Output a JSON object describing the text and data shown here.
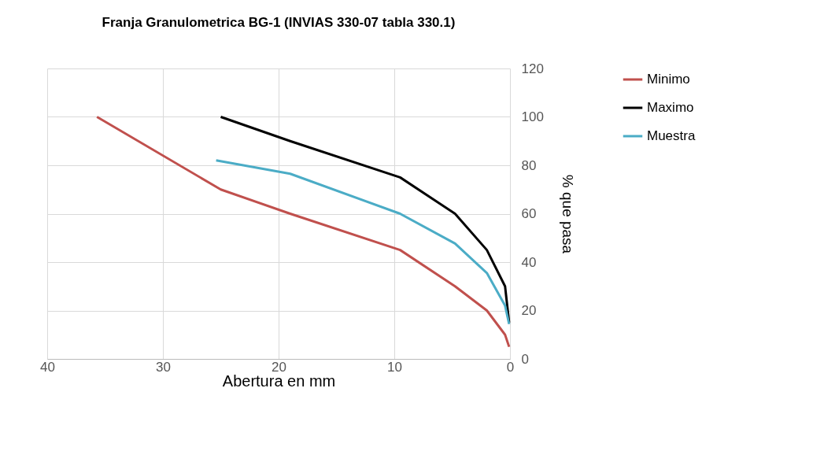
{
  "chart_data": {
    "type": "line",
    "title": "Franja Granulometrica BG-1 (INVIAS 330-07 tabla 330.1)",
    "xlabel": "Abertura en mm",
    "ylabel": "% que pasa",
    "series": [
      {
        "name": "Minimo",
        "color": "#c0504d",
        "x": [
          35.7,
          25,
          19,
          9.5,
          4.75,
          2,
          0.425,
          0.075
        ],
        "values": [
          100,
          70,
          60,
          45,
          30,
          20,
          10,
          5
        ]
      },
      {
        "name": "Maximo",
        "color": "#000000",
        "x": [
          25,
          19,
          9.5,
          4.75,
          2,
          0.425,
          0.075
        ],
        "values": [
          100,
          90,
          75,
          60,
          45,
          30,
          15
        ]
      },
      {
        "name": "Muestra",
        "color": "#4bacc6",
        "x": [
          25.4,
          19,
          9.5,
          4.75,
          2,
          0.425,
          0.075
        ],
        "values": [
          82,
          76.5,
          60,
          47.7,
          35.5,
          22,
          14.4
        ]
      }
    ],
    "xlim": [
      40,
      0
    ],
    "xticks": [
      40,
      30,
      20,
      10,
      0
    ],
    "ylim": [
      0,
      120
    ],
    "yticks": [
      0,
      20,
      40,
      60,
      80,
      100,
      120
    ],
    "grid": true,
    "legend": "right",
    "marker": "none",
    "line_style": "solid"
  }
}
